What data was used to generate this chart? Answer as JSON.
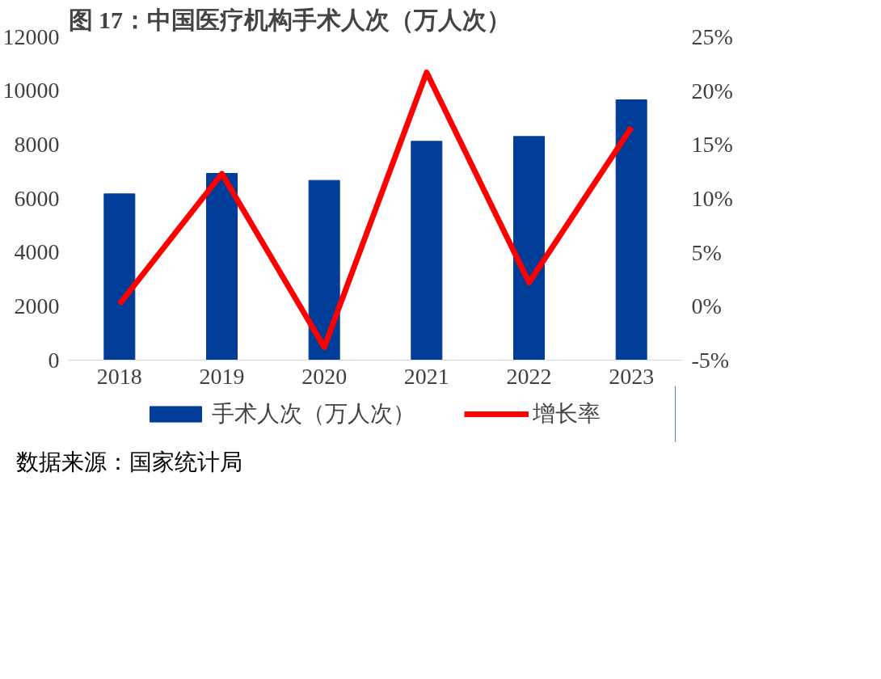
{
  "chart_data": {
    "type": "bar",
    "title": "图 17：中国医疗机构手术人次（万人次）",
    "categories": [
      "2018",
      "2019",
      "2020",
      "2021",
      "2022",
      "2023"
    ],
    "series": [
      {
        "name": "手术人次（万人次）",
        "color": "#003d99",
        "values": [
          6170,
          6930,
          6670,
          8120,
          8300,
          9660
        ]
      },
      {
        "name": "增长率",
        "type": "line",
        "axis": "y2",
        "color": "#ff0000",
        "values": [
          0.2,
          12.3,
          -3.8,
          21.7,
          2.2,
          16.6
        ]
      }
    ],
    "ylim": [
      0,
      12000
    ],
    "yticks": [
      0,
      2000,
      4000,
      6000,
      8000,
      10000,
      12000
    ],
    "y2lim": [
      -5,
      25
    ],
    "y2ticks": [
      {
        "value": -5,
        "label": "-5%"
      },
      {
        "value": 0,
        "label": "0%"
      },
      {
        "value": 5,
        "label": "5%"
      },
      {
        "value": 10,
        "label": "10%"
      },
      {
        "value": 15,
        "label": "15%"
      },
      {
        "value": 20,
        "label": "20%"
      },
      {
        "value": 25,
        "label": "25%"
      }
    ],
    "grid": false,
    "legend": "bottom",
    "annotations": [
      "数据来源：国家统计局"
    ]
  }
}
